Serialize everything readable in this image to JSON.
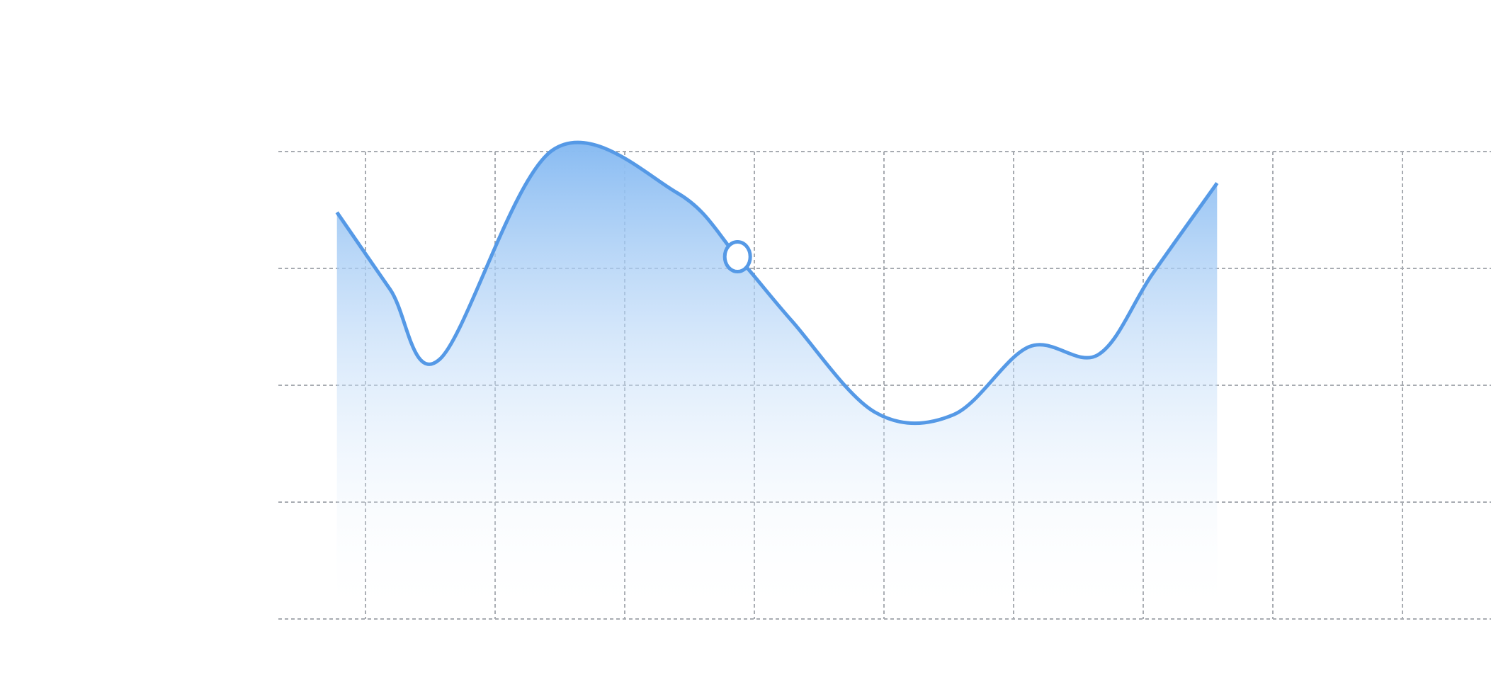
{
  "chart_data": {
    "type": "area",
    "title": "",
    "xlabel": "",
    "ylabel": "",
    "grid": true,
    "legend": "none",
    "ylim": [
      0,
      4
    ],
    "colors": {
      "line": "#5599e6",
      "fill_top": "#88bbf2",
      "fill_bottom": "#ffffff",
      "grid": "#a7abb1",
      "marker_fill": "#ffffff"
    },
    "series": [
      {
        "values": [
          [
            -0.22,
            3.48
          ],
          [
            0.19,
            2.82
          ],
          [
            0.57,
            2.22
          ],
          [
            1.44,
            4.01
          ],
          [
            2.4,
            3.65
          ],
          [
            2.87,
            3.1
          ],
          [
            3.29,
            2.55
          ],
          [
            3.93,
            1.77
          ],
          [
            4.54,
            1.75
          ],
          [
            5.12,
            2.33
          ],
          [
            5.65,
            2.26
          ],
          [
            6.07,
            2.95
          ],
          [
            6.57,
            3.73
          ]
        ],
        "highlight_index": 5
      }
    ]
  }
}
